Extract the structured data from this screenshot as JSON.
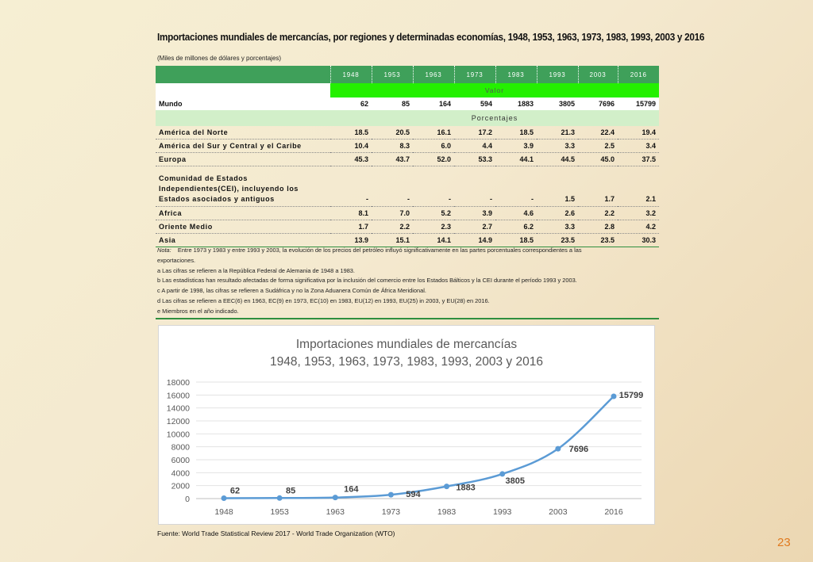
{
  "title": "Importaciones mundiales de mercancías, por regiones y determinadas economías, 1948, 1953, 1963, 1973, 1983, 1993, 2003 y 2016",
  "subtitle": "(Miles de millones de dólares y porcentajes)",
  "table": {
    "years": [
      "1948",
      "1953",
      "1963",
      "1973",
      "1983",
      "1993",
      "2003",
      "2016"
    ],
    "valor_label": "Valor",
    "porcentajes_label": "Porcentajes",
    "mundo": {
      "name": "Mundo",
      "values": [
        "62",
        "85",
        "164",
        "594",
        "1883",
        "3805",
        "7696",
        "15799"
      ]
    },
    "rows": [
      {
        "name": "América del Norte",
        "values": [
          "18.5",
          "20.5",
          "16.1",
          "17.2",
          "18.5",
          "21.3",
          "22.4",
          "19.4"
        ]
      },
      {
        "name": "América del Sur y Central y el Caribe",
        "values": [
          "10.4",
          "8.3",
          "6.0",
          "4.4",
          "3.9",
          "3.3",
          "2.5",
          "3.4"
        ]
      },
      {
        "name": "Europa",
        "values": [
          "45.3",
          "43.7",
          "52.0",
          "53.3",
          "44.1",
          "44.5",
          "45.0",
          "37.5"
        ]
      },
      {
        "name_lines": [
          "Comunidad de Estados",
          "Independientes(CEI), incluyendo los",
          "Estados asociados y antiguos"
        ],
        "values": [
          "-",
          "-",
          "-",
          "-",
          "-",
          "1.5",
          "1.7",
          "2.1"
        ]
      },
      {
        "name": "Africa",
        "values": [
          "8.1",
          "7.0",
          "5.2",
          "3.9",
          "4.6",
          "2.6",
          "2.2",
          "3.2"
        ]
      },
      {
        "name": "Oriente Medio",
        "values": [
          "1.7",
          "2.2",
          "2.3",
          "2.7",
          "6.2",
          "3.3",
          "2.8",
          "4.2"
        ]
      },
      {
        "name": "Asia",
        "values": [
          "13.9",
          "15.1",
          "14.1",
          "14.9",
          "18.5",
          "23.5",
          "23.5",
          "30.3"
        ]
      }
    ]
  },
  "notes": {
    "label": "Nota:",
    "nota_line1": "Entre 1973 y 1983 y entre 1993 y 2003, la evolución de los precios del petróleo influyó significativamente en las partes porcentuales correspondientes a las",
    "nota_line2": "exportaciones.",
    "a": "a Las cifras se refieren a la República Federal de Alemania de 1948 a 1983.",
    "b": "b Las estadísticas han resultado afectadas de forma significativa por la inclusión del comercio entre los Estados Bálticos y la CEI durante el período 1993 y 2003.",
    "c": "c  A partir de 1998, las cifras se refieren a Sudáfrica y no la Zona Aduanera Común de África Meridional.",
    "d": "d  Las cifras se refieren a EEC(6) en 1963, EC(9) en 1973, EC(10) en 1983, EU(12) en 1993, EU(25) in 2003, y EU(28) en 2016.",
    "e": "e  Miembros en el año indicado."
  },
  "chart_data": {
    "type": "line",
    "title_lines": [
      "Importaciones mundiales de mercancías",
      "1948, 1953, 1963, 1973, 1983, 1993, 2003 y 2016"
    ],
    "categories": [
      "1948",
      "1953",
      "1963",
      "1973",
      "1983",
      "1993",
      "2003",
      "2016"
    ],
    "values": [
      62,
      85,
      164,
      594,
      1883,
      3805,
      7696,
      15799
    ],
    "data_labels": [
      "62",
      "85",
      "164",
      "594",
      "1883",
      "3805",
      "7696",
      "15799"
    ],
    "y_ticks": [
      "0",
      "2000",
      "4000",
      "6000",
      "8000",
      "10000",
      "12000",
      "14000",
      "16000",
      "18000"
    ],
    "ylim": [
      0,
      18000
    ],
    "grid": true,
    "series_color": "#5b9bd5"
  },
  "source": "Fuente: World Trade Statistical Review 2017 - World Trade Organization (WTO)",
  "page_number": "23"
}
